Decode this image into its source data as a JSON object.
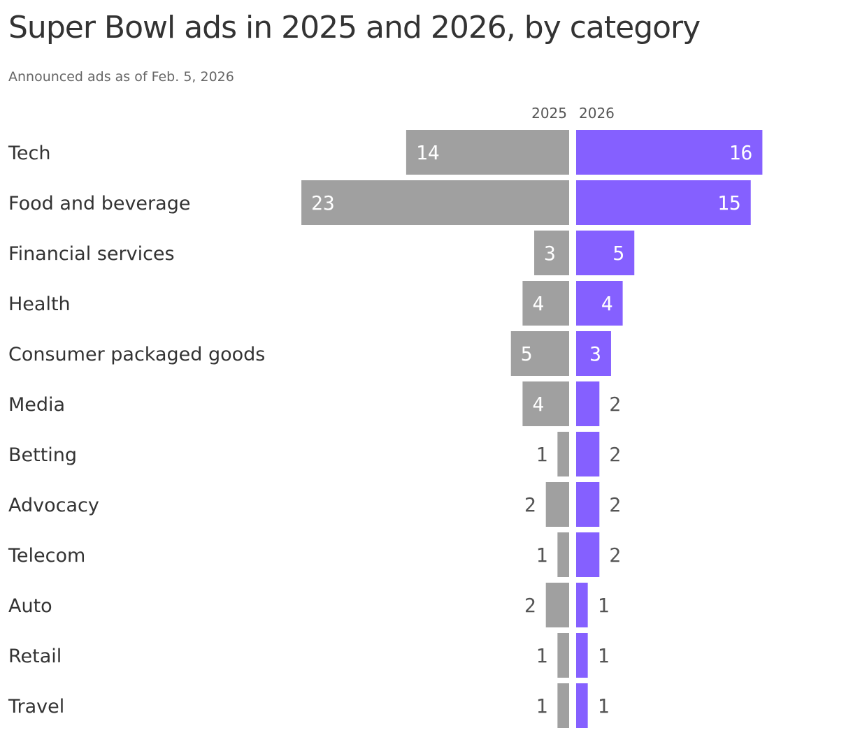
{
  "title": "Super Bowl ads in 2025 and 2026, by category",
  "subtitle": "Announced ads as of Feb. 5, 2026",
  "colors": {
    "series_2025": "#a0a0a0",
    "series_2026": "#8560ff",
    "label_inside": "#ffffff",
    "label_outside": "#555555",
    "text": "#333333"
  },
  "chart_data": {
    "type": "bar",
    "orientation": "horizontal-butterfly",
    "title": "Super Bowl ads in 2025 and 2026, by category",
    "subtitle": "Announced ads as of Feb. 5, 2026",
    "categories": [
      "Tech",
      "Food and beverage",
      "Financial services",
      "Health",
      "Consumer packaged goods",
      "Media",
      "Betting",
      "Advocacy",
      "Telecom",
      "Auto",
      "Retail",
      "Travel"
    ],
    "series": [
      {
        "name": "2025",
        "values": [
          14,
          23,
          3,
          4,
          5,
          4,
          1,
          2,
          1,
          2,
          1,
          1
        ]
      },
      {
        "name": "2026",
        "values": [
          16,
          15,
          5,
          4,
          3,
          2,
          2,
          2,
          2,
          1,
          1,
          1
        ]
      }
    ],
    "grid": false,
    "data_labels": true
  }
}
